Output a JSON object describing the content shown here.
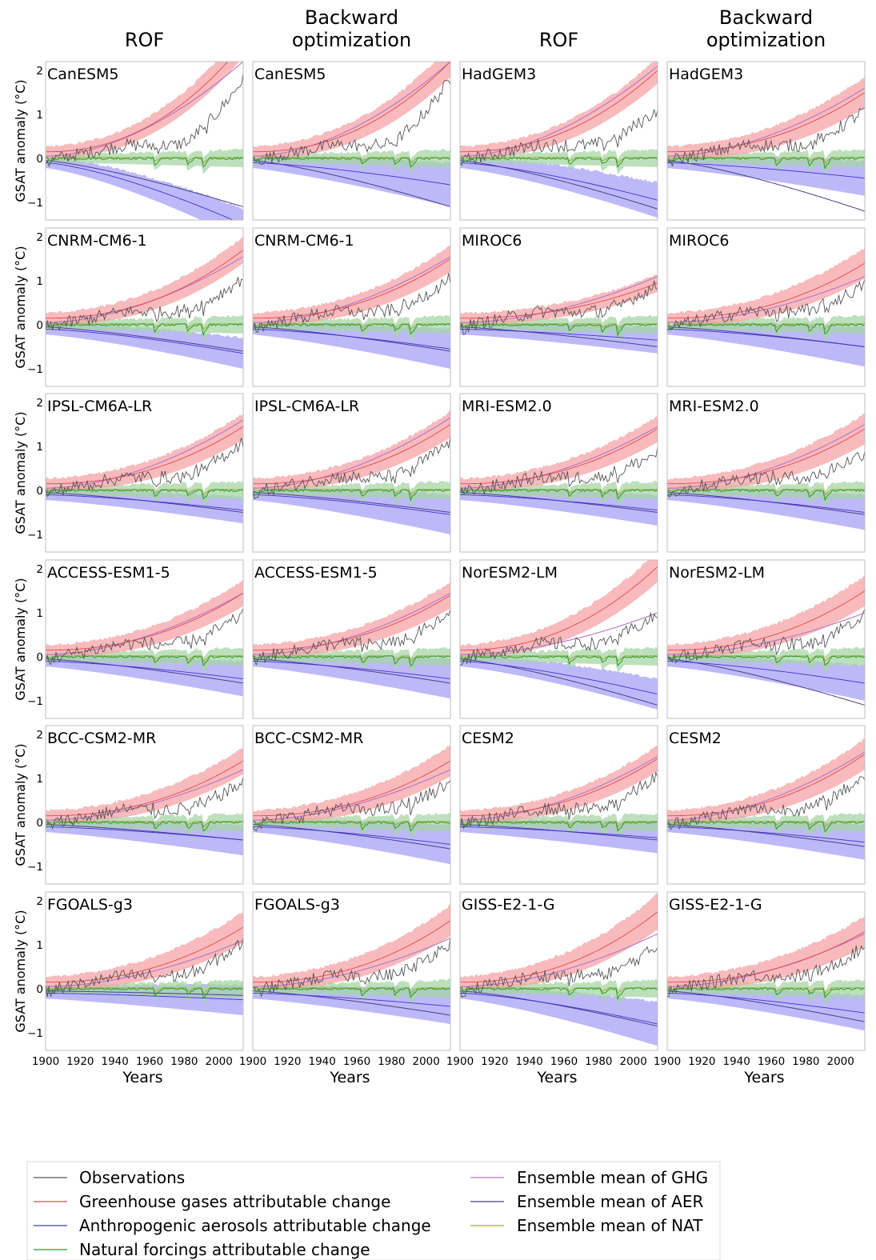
{
  "colors": {
    "observations": "#555555",
    "ghg": "#e8474a",
    "ghg_band": "#f6a3a5",
    "aer": "#3c35d8",
    "aer_band": "#a7a2f5",
    "nat": "#2a9a2a",
    "nat_band": "#a6d6a6",
    "mean_ghg": "#b275c8",
    "mean_aer": "#4a3f8a",
    "mean_nat": "#a8a83a"
  },
  "legend": {
    "observations": "Observations",
    "ghg": "Greenhouse gases attributable change",
    "aer": "Anthropogenic aerosols attributable change",
    "nat": "Natural forcings attributable change",
    "mean_ghg": "Ensemble mean of GHG",
    "mean_aer": "Ensemble mean of AER",
    "mean_nat": "Ensemble mean of NAT"
  },
  "chart_data": {
    "type": "line",
    "column_titles": [
      [
        "ROF"
      ],
      [
        "Backward",
        "optimization"
      ],
      [
        "ROF"
      ],
      [
        "Backward",
        "optimization"
      ]
    ],
    "ylabel": "GSAT anomaly (°C)",
    "xlabel": "Years",
    "xlim": [
      1900,
      2014
    ],
    "ylim": [
      -1.4,
      2.2
    ],
    "xticks": [
      1900,
      1920,
      1940,
      1960,
      1980,
      2000
    ],
    "xtick_labels": [
      "1900",
      "1920",
      "1940",
      "1960",
      "1980",
      "2000"
    ],
    "yticks": [
      -1,
      0,
      1,
      2
    ],
    "ytick_labels": [
      "−1",
      "0",
      "1",
      "2"
    ],
    "panels": [
      {
        "model": "CanESM5",
        "method": "ROF",
        "ghg_end": 2.6,
        "ghg_band": 0.3,
        "aer_end": -1.5,
        "aer_band": 0.35,
        "mean_ghg_end": 2.2,
        "mean_aer_end": -1.1,
        "obs_end": 1.9
      },
      {
        "model": "CanESM5",
        "method": "Backward optimization",
        "ghg_end": 2.2,
        "ghg_band": 0.35,
        "aer_end": -0.6,
        "aer_band": 0.5,
        "mean_ghg_end": 2.2,
        "mean_aer_end": -1.1,
        "obs_end": 1.9
      },
      {
        "model": "HadGEM3",
        "method": "ROF",
        "ghg_end": 2.0,
        "ghg_band": 0.3,
        "aer_end": -0.95,
        "aer_band": 0.4,
        "mean_ghg_end": 2.1,
        "mean_aer_end": -1.15,
        "obs_end": 1.2
      },
      {
        "model": "HadGEM3",
        "method": "Backward optimization",
        "ghg_end": 1.5,
        "ghg_band": 0.35,
        "aer_end": -0.45,
        "aer_band": 0.4,
        "mean_ghg_end": 1.6,
        "mean_aer_end": -1.2,
        "obs_end": 1.2
      },
      {
        "model": "CNRM-CM6-1",
        "method": "ROF",
        "ghg_end": 1.7,
        "ghg_band": 0.3,
        "aer_end": -0.65,
        "aer_band": 0.35,
        "mean_ghg_end": 1.55,
        "mean_aer_end": -0.6,
        "obs_end": 1.15
      },
      {
        "model": "CNRM-CM6-1",
        "method": "Backward optimization",
        "ghg_end": 1.5,
        "ghg_band": 0.3,
        "aer_end": -0.55,
        "aer_band": 0.45,
        "mean_ghg_end": 1.55,
        "mean_aer_end": -0.6,
        "obs_end": 1.15
      },
      {
        "model": "MIROC6",
        "method": "ROF",
        "ghg_end": 0.95,
        "ghg_band": 0.2,
        "aer_end": -0.35,
        "aer_band": 0.3,
        "mean_ghg_end": 1.1,
        "mean_aer_end": -0.5,
        "obs_end": 1.0
      },
      {
        "model": "MIROC6",
        "method": "Backward optimization",
        "ghg_end": 1.4,
        "ghg_band": 0.35,
        "aer_end": -0.5,
        "aer_band": 0.45,
        "mean_ghg_end": 1.1,
        "mean_aer_end": -0.5,
        "obs_end": 1.0
      },
      {
        "model": "IPSL-CM6A-LR",
        "method": "ROF",
        "ghg_end": 1.45,
        "ghg_band": 0.3,
        "aer_end": -0.45,
        "aer_band": 0.3,
        "mean_ghg_end": 1.6,
        "mean_aer_end": -0.5,
        "obs_end": 1.2
      },
      {
        "model": "IPSL-CM6A-LR",
        "method": "Backward optimization",
        "ghg_end": 1.5,
        "ghg_band": 0.3,
        "aer_end": -0.55,
        "aer_band": 0.45,
        "mean_ghg_end": 1.65,
        "mean_aer_end": -0.5,
        "obs_end": 1.2
      },
      {
        "model": "MRI-ESM2.0",
        "method": "ROF",
        "ghg_end": 1.4,
        "ghg_band": 0.3,
        "aer_end": -0.45,
        "aer_band": 0.35,
        "mean_ghg_end": 1.45,
        "mean_aer_end": -0.5,
        "obs_end": 0.95
      },
      {
        "model": "MRI-ESM2.0",
        "method": "Backward optimization",
        "ghg_end": 1.4,
        "ghg_band": 0.35,
        "aer_end": -0.5,
        "aer_band": 0.4,
        "mean_ghg_end": 1.5,
        "mean_aer_end": -0.55,
        "obs_end": 0.95
      },
      {
        "model": "ACCESS-ESM1-5",
        "method": "ROF",
        "ghg_end": 1.45,
        "ghg_band": 0.3,
        "aer_end": -0.5,
        "aer_band": 0.4,
        "mean_ghg_end": 1.45,
        "mean_aer_end": -0.6,
        "obs_end": 1.05
      },
      {
        "model": "ACCESS-ESM1-5",
        "method": "Backward optimization",
        "ghg_end": 1.4,
        "ghg_band": 0.3,
        "aer_end": -0.5,
        "aer_band": 0.45,
        "mean_ghg_end": 1.45,
        "mean_aer_end": -0.6,
        "obs_end": 1.05
      },
      {
        "model": "NorESM2-LM",
        "method": "ROF",
        "ghg_end": 2.05,
        "ghg_band": 0.35,
        "aer_end": -0.85,
        "aer_band": 0.35,
        "mean_ghg_end": 1.0,
        "mean_aer_end": -1.1,
        "obs_end": 1.05
      },
      {
        "model": "NorESM2-LM",
        "method": "Backward optimization",
        "ghg_end": 1.5,
        "ghg_band": 0.35,
        "aer_end": -0.6,
        "aer_band": 0.4,
        "mean_ghg_end": 1.0,
        "mean_aer_end": -1.1,
        "obs_end": 1.05
      },
      {
        "model": "BCC-CSM2-MR",
        "method": "ROF",
        "ghg_end": 1.4,
        "ghg_band": 0.3,
        "aer_end": -0.4,
        "aer_band": 0.35,
        "mean_ghg_end": 1.2,
        "mean_aer_end": -0.4,
        "obs_end": 1.0
      },
      {
        "model": "BCC-CSM2-MR",
        "method": "Backward optimization",
        "ghg_end": 1.4,
        "ghg_band": 0.35,
        "aer_end": -0.5,
        "aer_band": 0.45,
        "mean_ghg_end": 1.2,
        "mean_aer_end": -0.6,
        "obs_end": 1.0
      },
      {
        "model": "CESM2",
        "method": "ROF",
        "ghg_end": 1.45,
        "ghg_band": 0.3,
        "aer_end": -0.35,
        "aer_band": 0.35,
        "mean_ghg_end": 1.5,
        "mean_aer_end": -0.4,
        "obs_end": 1.15
      },
      {
        "model": "CESM2",
        "method": "Backward optimization",
        "ghg_end": 1.55,
        "ghg_band": 0.35,
        "aer_end": -0.45,
        "aer_band": 0.4,
        "mean_ghg_end": 1.6,
        "mean_aer_end": -0.55,
        "obs_end": 1.15
      },
      {
        "model": "FGOALS-g3",
        "method": "ROF",
        "ghg_end": 1.4,
        "ghg_band": 0.35,
        "aer_end": -0.25,
        "aer_band": 0.35,
        "mean_ghg_end": 1.1,
        "mean_aer_end": -0.15,
        "obs_end": 1.15
      },
      {
        "model": "FGOALS-g3",
        "method": "Backward optimization",
        "ghg_end": 1.55,
        "ghg_band": 0.35,
        "aer_end": -0.4,
        "aer_band": 0.4,
        "mean_ghg_end": 1.15,
        "mean_aer_end": -0.6,
        "obs_end": 1.15
      },
      {
        "model": "GISS-E2-1-G",
        "method": "ROF",
        "ghg_end": 1.75,
        "ghg_band": 0.4,
        "aer_end": -0.8,
        "aer_band": 0.5,
        "mean_ghg_end": 1.25,
        "mean_aer_end": -0.85,
        "obs_end": 1.05
      },
      {
        "model": "GISS-E2-1-G",
        "method": "Backward optimization",
        "ghg_end": 1.3,
        "ghg_band": 0.35,
        "aer_end": -0.55,
        "aer_band": 0.4,
        "mean_ghg_end": 1.25,
        "mean_aer_end": -0.75,
        "obs_end": 1.05
      }
    ]
  }
}
